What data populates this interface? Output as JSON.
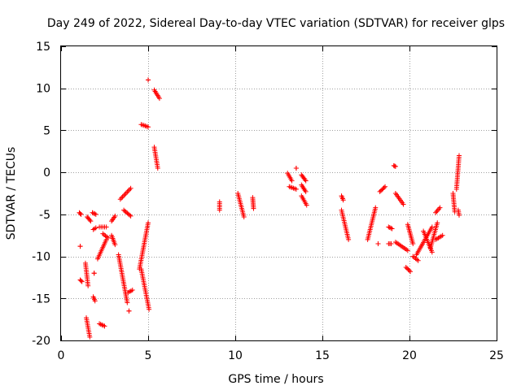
{
  "chart_data": {
    "type": "scatter",
    "title": "Day 249 of 2022, Sidereal Day-to-day VTEC variation (SDTVAR) for receiver glps",
    "xlabel": "GPS time / hours",
    "ylabel": "SDTVAR / TECUs",
    "xlim": [
      0,
      25
    ],
    "ylim": [
      -20,
      15
    ],
    "xticks": [
      0,
      5,
      10,
      15,
      20,
      25
    ],
    "yticks": [
      -20,
      -15,
      -10,
      -5,
      0,
      5,
      10,
      15
    ],
    "xtick_labels": [
      "0",
      "5",
      "10",
      "15",
      "20",
      "25"
    ],
    "ytick_labels": [
      "-20",
      "-15",
      "-10",
      "-5",
      "0",
      "5",
      "10",
      "15"
    ],
    "grid": true,
    "marker": "plus",
    "color": "#ff0000",
    "series": [
      {
        "name": "glps",
        "segments": [
          [
            1.05,
            -4.8,
            1.15,
            -5.0
          ],
          [
            1.1,
            -8.8,
            1.1,
            -8.8
          ],
          [
            1.1,
            -12.8,
            1.2,
            -13.0
          ],
          [
            1.4,
            -10.8,
            1.55,
            -13.5
          ],
          [
            1.45,
            -17.3,
            1.65,
            -19.6
          ],
          [
            1.5,
            -5.3,
            1.7,
            -5.8
          ],
          [
            1.8,
            -4.8,
            2.0,
            -5.0
          ],
          [
            1.85,
            -6.8,
            2.0,
            -6.6
          ],
          [
            1.85,
            -14.8,
            1.95,
            -15.3
          ],
          [
            1.9,
            -12.0,
            1.9,
            -12.0
          ],
          [
            2.1,
            -10.3,
            2.6,
            -8.0
          ],
          [
            2.2,
            -6.5,
            2.6,
            -6.5
          ],
          [
            2.2,
            -18.0,
            2.5,
            -18.3
          ],
          [
            2.4,
            -7.3,
            2.7,
            -7.8
          ],
          [
            2.9,
            -5.8,
            3.1,
            -5.2
          ],
          [
            2.9,
            -7.5,
            3.1,
            -8.6
          ],
          [
            3.3,
            -9.8,
            3.8,
            -15.5
          ],
          [
            3.4,
            -3.2,
            4.0,
            -1.9
          ],
          [
            3.6,
            -4.5,
            4.0,
            -5.2
          ],
          [
            3.85,
            -14.3,
            4.1,
            -14.0
          ],
          [
            3.9,
            -16.5,
            3.9,
            -16.5
          ],
          [
            4.5,
            -11.5,
            5.0,
            -6.0
          ],
          [
            4.6,
            -11.5,
            5.05,
            -16.3
          ],
          [
            4.6,
            5.7,
            5.0,
            5.4
          ],
          [
            5.0,
            11.0,
            5.0,
            11.0
          ],
          [
            5.35,
            9.8,
            5.65,
            8.8
          ],
          [
            5.35,
            3.0,
            5.55,
            0.5
          ],
          [
            9.1,
            -3.5,
            9.1,
            -4.5
          ],
          [
            10.15,
            -2.5,
            10.5,
            -5.3
          ],
          [
            11.0,
            -3.0,
            11.05,
            -4.3
          ],
          [
            13.0,
            -0.1,
            13.25,
            -1.0
          ],
          [
            13.1,
            -1.7,
            13.5,
            -2.0
          ],
          [
            13.5,
            0.5,
            13.5,
            0.5
          ],
          [
            13.8,
            -0.3,
            14.05,
            -1.0
          ],
          [
            13.8,
            -1.5,
            14.05,
            -2.3
          ],
          [
            13.8,
            -2.8,
            14.1,
            -3.9
          ],
          [
            16.1,
            -2.8,
            16.2,
            -3.3
          ],
          [
            16.1,
            -4.5,
            16.5,
            -8.0
          ],
          [
            17.6,
            -8.0,
            18.05,
            -4.2
          ],
          [
            18.2,
            -8.5,
            18.2,
            -8.5
          ],
          [
            18.3,
            -2.3,
            18.6,
            -1.7
          ],
          [
            18.8,
            -6.5,
            19.0,
            -6.7
          ],
          [
            18.8,
            -8.5,
            18.95,
            -8.5
          ],
          [
            19.1,
            0.8,
            19.2,
            0.7
          ],
          [
            19.2,
            -2.5,
            19.65,
            -3.8
          ],
          [
            19.2,
            -8.3,
            19.9,
            -9.3
          ],
          [
            19.8,
            -11.3,
            20.05,
            -11.8
          ],
          [
            19.9,
            -6.2,
            20.2,
            -8.5
          ],
          [
            20.2,
            -10.0,
            20.5,
            -10.5
          ],
          [
            20.4,
            -9.8,
            21.3,
            -6.5
          ],
          [
            20.8,
            -7.0,
            21.3,
            -9.5
          ],
          [
            21.2,
            -9.0,
            21.6,
            -6.0
          ],
          [
            21.5,
            -4.8,
            21.75,
            -4.2
          ],
          [
            21.5,
            -8.0,
            21.9,
            -7.5
          ],
          [
            22.5,
            -2.5,
            22.6,
            -4.7
          ],
          [
            22.7,
            -2.0,
            22.85,
            2.0
          ],
          [
            22.8,
            -4.5,
            22.85,
            -5.1
          ]
        ]
      }
    ]
  }
}
